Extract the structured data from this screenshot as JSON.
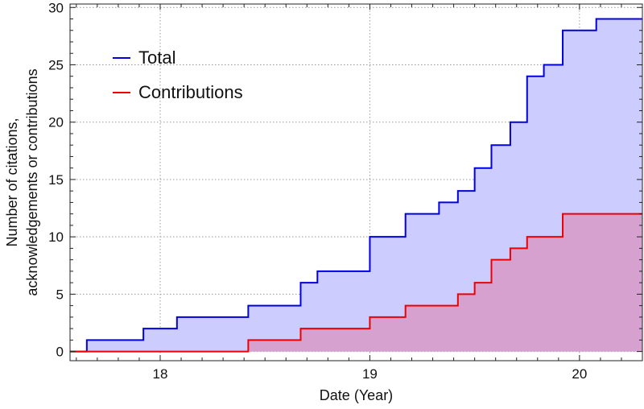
{
  "chart_data": {
    "type": "area",
    "interpolation": "step-after",
    "xlabel": "Date (Year)",
    "ylabel_lines": [
      "Number of citations,",
      "acknowledgements or contributions"
    ],
    "xlim": [
      17.57,
      20.3
    ],
    "ylim": [
      -0.8,
      30.3
    ],
    "xticks": [
      18,
      19,
      20
    ],
    "yticks": [
      0,
      5,
      10,
      15,
      20,
      25,
      30
    ],
    "grid": true,
    "legend_position": "upper-left",
    "series": [
      {
        "name": "Total",
        "color": "#0000e0",
        "fill": "#ccccff",
        "x": [
          17.57,
          17.65,
          17.92,
          18.08,
          18.42,
          18.67,
          18.75,
          19.0,
          19.17,
          19.33,
          19.42,
          19.5,
          19.58,
          19.67,
          19.75,
          19.83,
          19.92,
          20.08,
          20.3
        ],
        "y": [
          0,
          1,
          2,
          3,
          4,
          6,
          7,
          10,
          12,
          13,
          14,
          16,
          18,
          20,
          24,
          25,
          28,
          29,
          29
        ]
      },
      {
        "name": "Contributions",
        "color": "#ee0000",
        "fill": "#d6a0cf",
        "x": [
          17.57,
          18.42,
          18.67,
          19.0,
          19.17,
          19.42,
          19.5,
          19.58,
          19.67,
          19.75,
          19.92,
          20.3
        ],
        "y": [
          0,
          1,
          2,
          3,
          4,
          5,
          6,
          8,
          9,
          10,
          12,
          12
        ]
      }
    ]
  }
}
